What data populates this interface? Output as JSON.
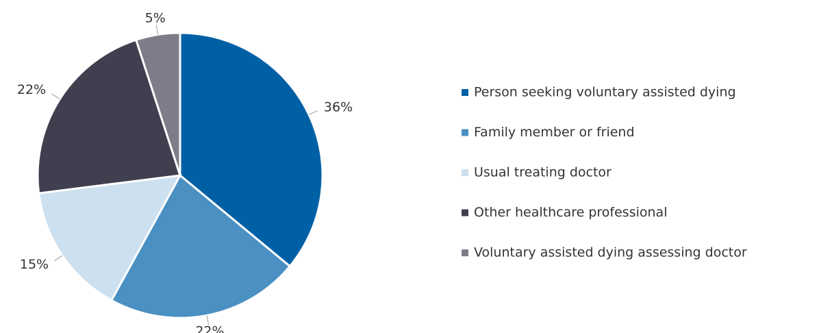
{
  "chart_data": {
    "type": "pie",
    "categories": [
      "Person seeking voluntary assisted dying",
      "Family member or friend",
      "Usual treating doctor",
      "Other healthcare professional",
      "Voluntary assisted dying assessing doctor"
    ],
    "values": [
      36,
      22,
      15,
      22,
      5
    ],
    "value_labels": [
      "36%",
      "22%",
      "15%",
      "22%",
      "5%"
    ],
    "colors": [
      "#0060a6",
      "#4a90c2",
      "#cde0ef",
      "#403f4f",
      "#7d7c88"
    ],
    "legend": "right"
  }
}
